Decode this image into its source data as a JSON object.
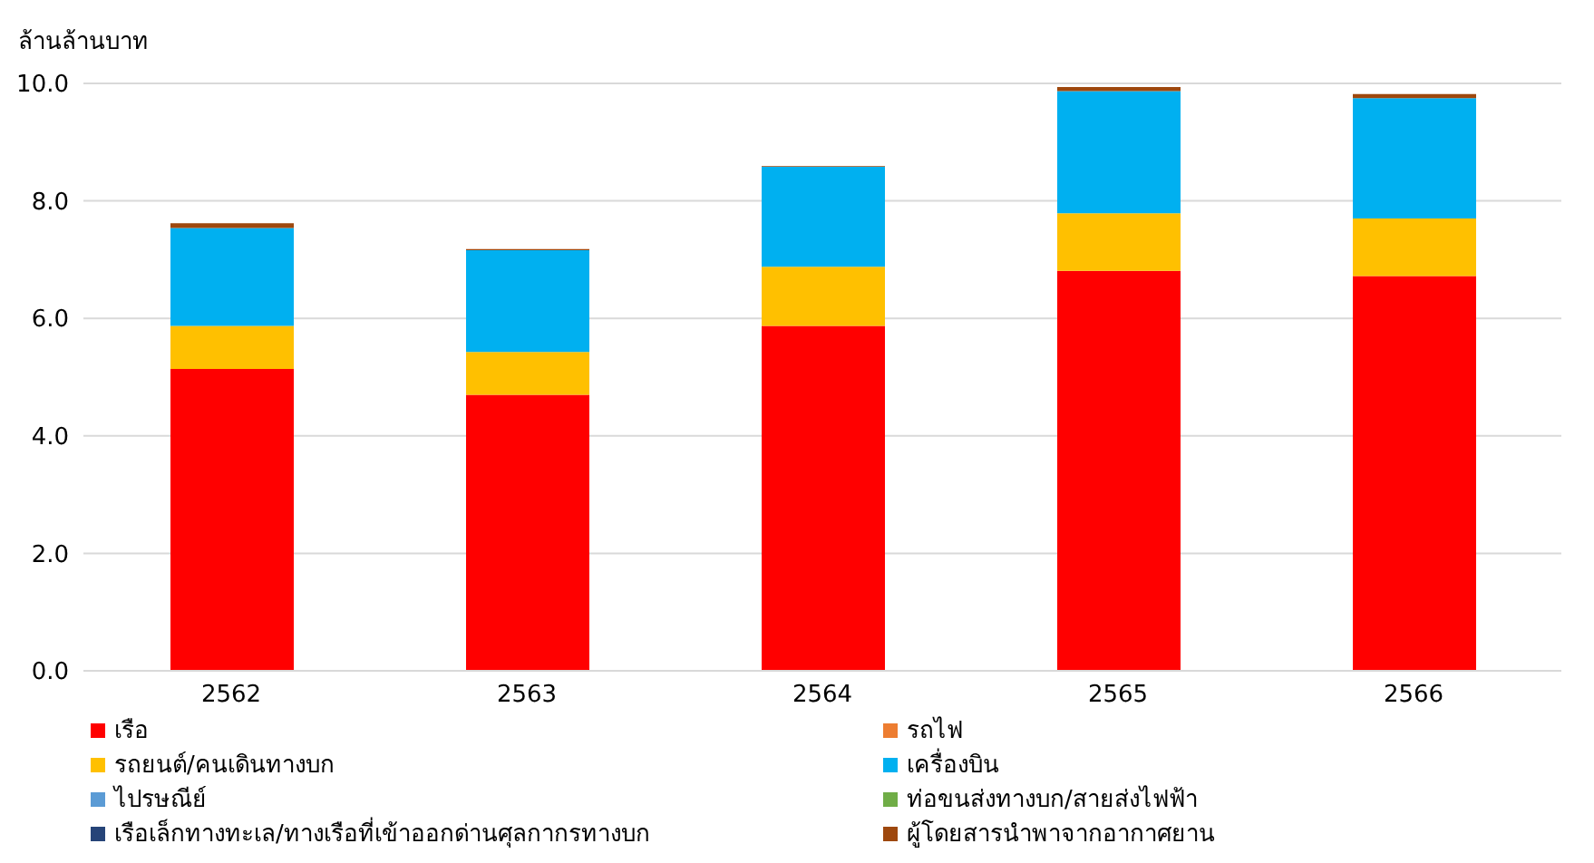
{
  "chart_data": {
    "type": "bar",
    "ylabel": "ล้านล้านบาท",
    "categories": [
      "2562",
      "2563",
      "2564",
      "2565",
      "2566"
    ],
    "stacked": true,
    "series": [
      {
        "name": "เรือ",
        "color": "#ff0000",
        "values": [
          5.14,
          4.7,
          5.87,
          6.81,
          6.72
        ]
      },
      {
        "name": "รถไฟ",
        "color": "#ed7d31",
        "values": [
          0.0,
          0.0,
          0.0,
          0.0,
          0.0
        ]
      },
      {
        "name": "รถยนต์/คนเดินทางบก",
        "color": "#ffc000",
        "values": [
          0.73,
          0.73,
          1.01,
          0.98,
          0.98
        ]
      },
      {
        "name": "เครื่องบิน",
        "color": "#00b0f0",
        "values": [
          1.67,
          1.73,
          1.7,
          2.08,
          2.05
        ]
      },
      {
        "name": "ไปรษณีย์",
        "color": "#5b9bd5",
        "values": [
          0.0,
          0.0,
          0.0,
          0.0,
          0.0
        ]
      },
      {
        "name": "ท่อขนส่งทางบก/สายส่งไฟฟ้า",
        "color": "#70ad47",
        "values": [
          0.0,
          0.0,
          0.0,
          0.0,
          0.0
        ]
      },
      {
        "name": "เรือเล็กทางทะเล/ทางเรือที่เข้าออกด่านศุลกากรทางบก",
        "color": "#264478",
        "values": [
          0.0,
          0.0,
          0.0,
          0.0,
          0.0
        ]
      },
      {
        "name": "ผู้โดยสารนำพาจากอากาศยาน",
        "color": "#9e480e",
        "values": [
          0.08,
          0.02,
          0.01,
          0.07,
          0.07
        ]
      }
    ],
    "ylim": [
      0,
      10
    ],
    "yticks": [
      {
        "value": 0,
        "label": "0.0"
      },
      {
        "value": 2,
        "label": "2.0"
      },
      {
        "value": 4,
        "label": "4.0"
      },
      {
        "value": 6,
        "label": "6.0"
      },
      {
        "value": 8,
        "label": "8.0"
      },
      {
        "value": 10,
        "label": "10.0"
      }
    ],
    "grid": "y",
    "legend": "bottom"
  }
}
